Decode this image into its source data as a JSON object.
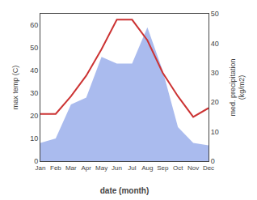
{
  "chart_data": {
    "type": "line",
    "categories": [
      "Jan",
      "Feb",
      "Mar",
      "Apr",
      "May",
      "Jun",
      "Jul",
      "Aug",
      "Sep",
      "Oct",
      "Nov",
      "Dec"
    ],
    "series": [
      {
        "type": "area",
        "color": "#aabbee",
        "values": [
          8,
          10,
          25,
          28,
          46,
          43,
          43,
          59,
          40,
          15,
          8,
          7
        ]
      },
      {
        "type": "line",
        "color": "#cc3333",
        "axis": "y2",
        "values": [
          16,
          16,
          22,
          29,
          38,
          48,
          48,
          41,
          30,
          22,
          15,
          18
        ]
      }
    ],
    "xlabel": "date (month)",
    "ylabel": "max temp (C)",
    "y2label": "med. precipitation\n(kg/m2)",
    "ylim": [
      0,
      65
    ],
    "yticks": [
      0,
      10,
      20,
      30,
      40,
      50,
      60
    ],
    "y2lim": [
      0,
      50
    ],
    "y2ticks": [
      0,
      10,
      20,
      30,
      40,
      50
    ],
    "grid": false
  }
}
